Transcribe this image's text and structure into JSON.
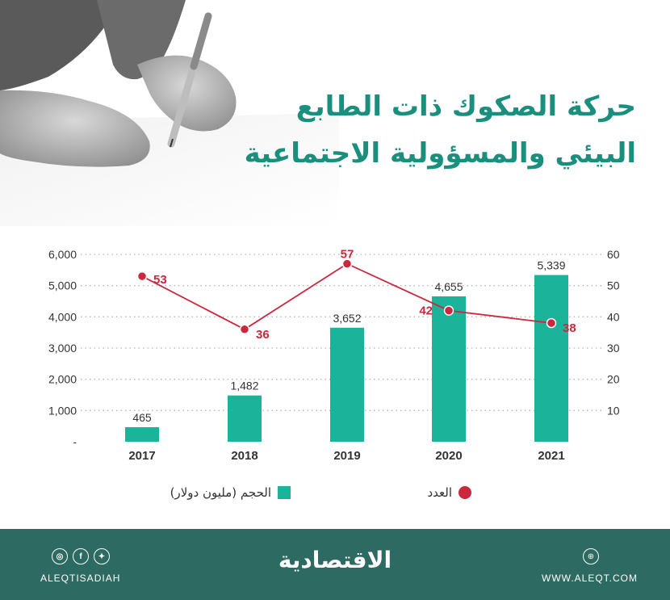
{
  "title": {
    "line1": "حركة الصكوك ذات الطابع",
    "line2": "البيئي والمسؤولية الاجتماعية"
  },
  "legend": {
    "volume": "الحجم (مليون دولار)",
    "count": "العدد"
  },
  "footer": {
    "brand": "الاقتصادية",
    "handle": "ALEQTISADIAH",
    "website": "WWW.ALEQT.COM",
    "social_icons": [
      "instagram-icon",
      "facebook-icon",
      "twitter-icon"
    ],
    "globe_icon": "globe-icon"
  },
  "colors": {
    "accent": "#1b8f7e",
    "bar": "#1bb39a",
    "line": "#c9283e",
    "footer": "#2c6a62"
  },
  "chart_data": {
    "type": "bar",
    "categories": [
      "2017",
      "2018",
      "2019",
      "2020",
      "2021"
    ],
    "series": [
      {
        "name": "الحجم (مليون دولار)",
        "type": "bar",
        "axis": "left",
        "values": [
          465,
          1482,
          3652,
          4655,
          5339
        ],
        "labels": [
          "465",
          "1,482",
          "3,652",
          "4,655",
          "5,339"
        ]
      },
      {
        "name": "العدد",
        "type": "line",
        "axis": "right",
        "values": [
          53,
          36,
          57,
          42,
          38
        ],
        "labels": [
          "53",
          "36",
          "57",
          "42",
          "38"
        ]
      }
    ],
    "y_left": {
      "range": [
        0,
        6000
      ],
      "ticks": [
        "-",
        "1,000",
        "2,000",
        "3,000",
        "4,000",
        "5,000",
        "6,000"
      ]
    },
    "y_right": {
      "range": [
        0,
        60
      ],
      "ticks": [
        "10",
        "20",
        "30",
        "40",
        "50",
        "60"
      ]
    },
    "grid": "dotted horizontal",
    "legend_position": "bottom"
  }
}
